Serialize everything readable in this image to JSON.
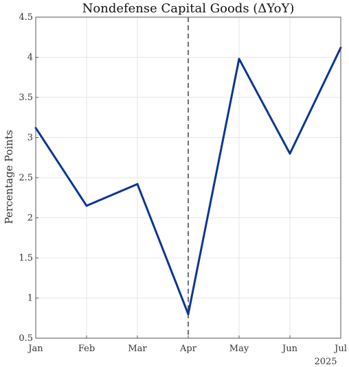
{
  "chart_data": {
    "type": "line",
    "title": "Nondefense Capital Goods (ΔYoY)",
    "ylabel": "Percentage Points",
    "xlabel": "",
    "x_secondary_label": "2025",
    "categories": [
      "Jan",
      "Feb",
      "Mar",
      "Apr",
      "May",
      "Jun",
      "Jul"
    ],
    "series": [
      {
        "values": [
          3.12,
          2.15,
          2.42,
          0.8,
          3.98,
          2.8,
          4.12
        ]
      }
    ],
    "ylim": [
      0.5,
      4.5
    ],
    "yticks": [
      "0.5",
      "1",
      "1.5",
      "2",
      "2.5",
      "3",
      "3.5",
      "4",
      "4.5"
    ],
    "grid": true,
    "vertical_marker": {
      "category": "Apr",
      "style": "dashed"
    },
    "colors": {
      "line": "#0b3594",
      "marker": "#6e6e6e",
      "grid": "#e6e6e6",
      "axis": "#555555"
    }
  }
}
